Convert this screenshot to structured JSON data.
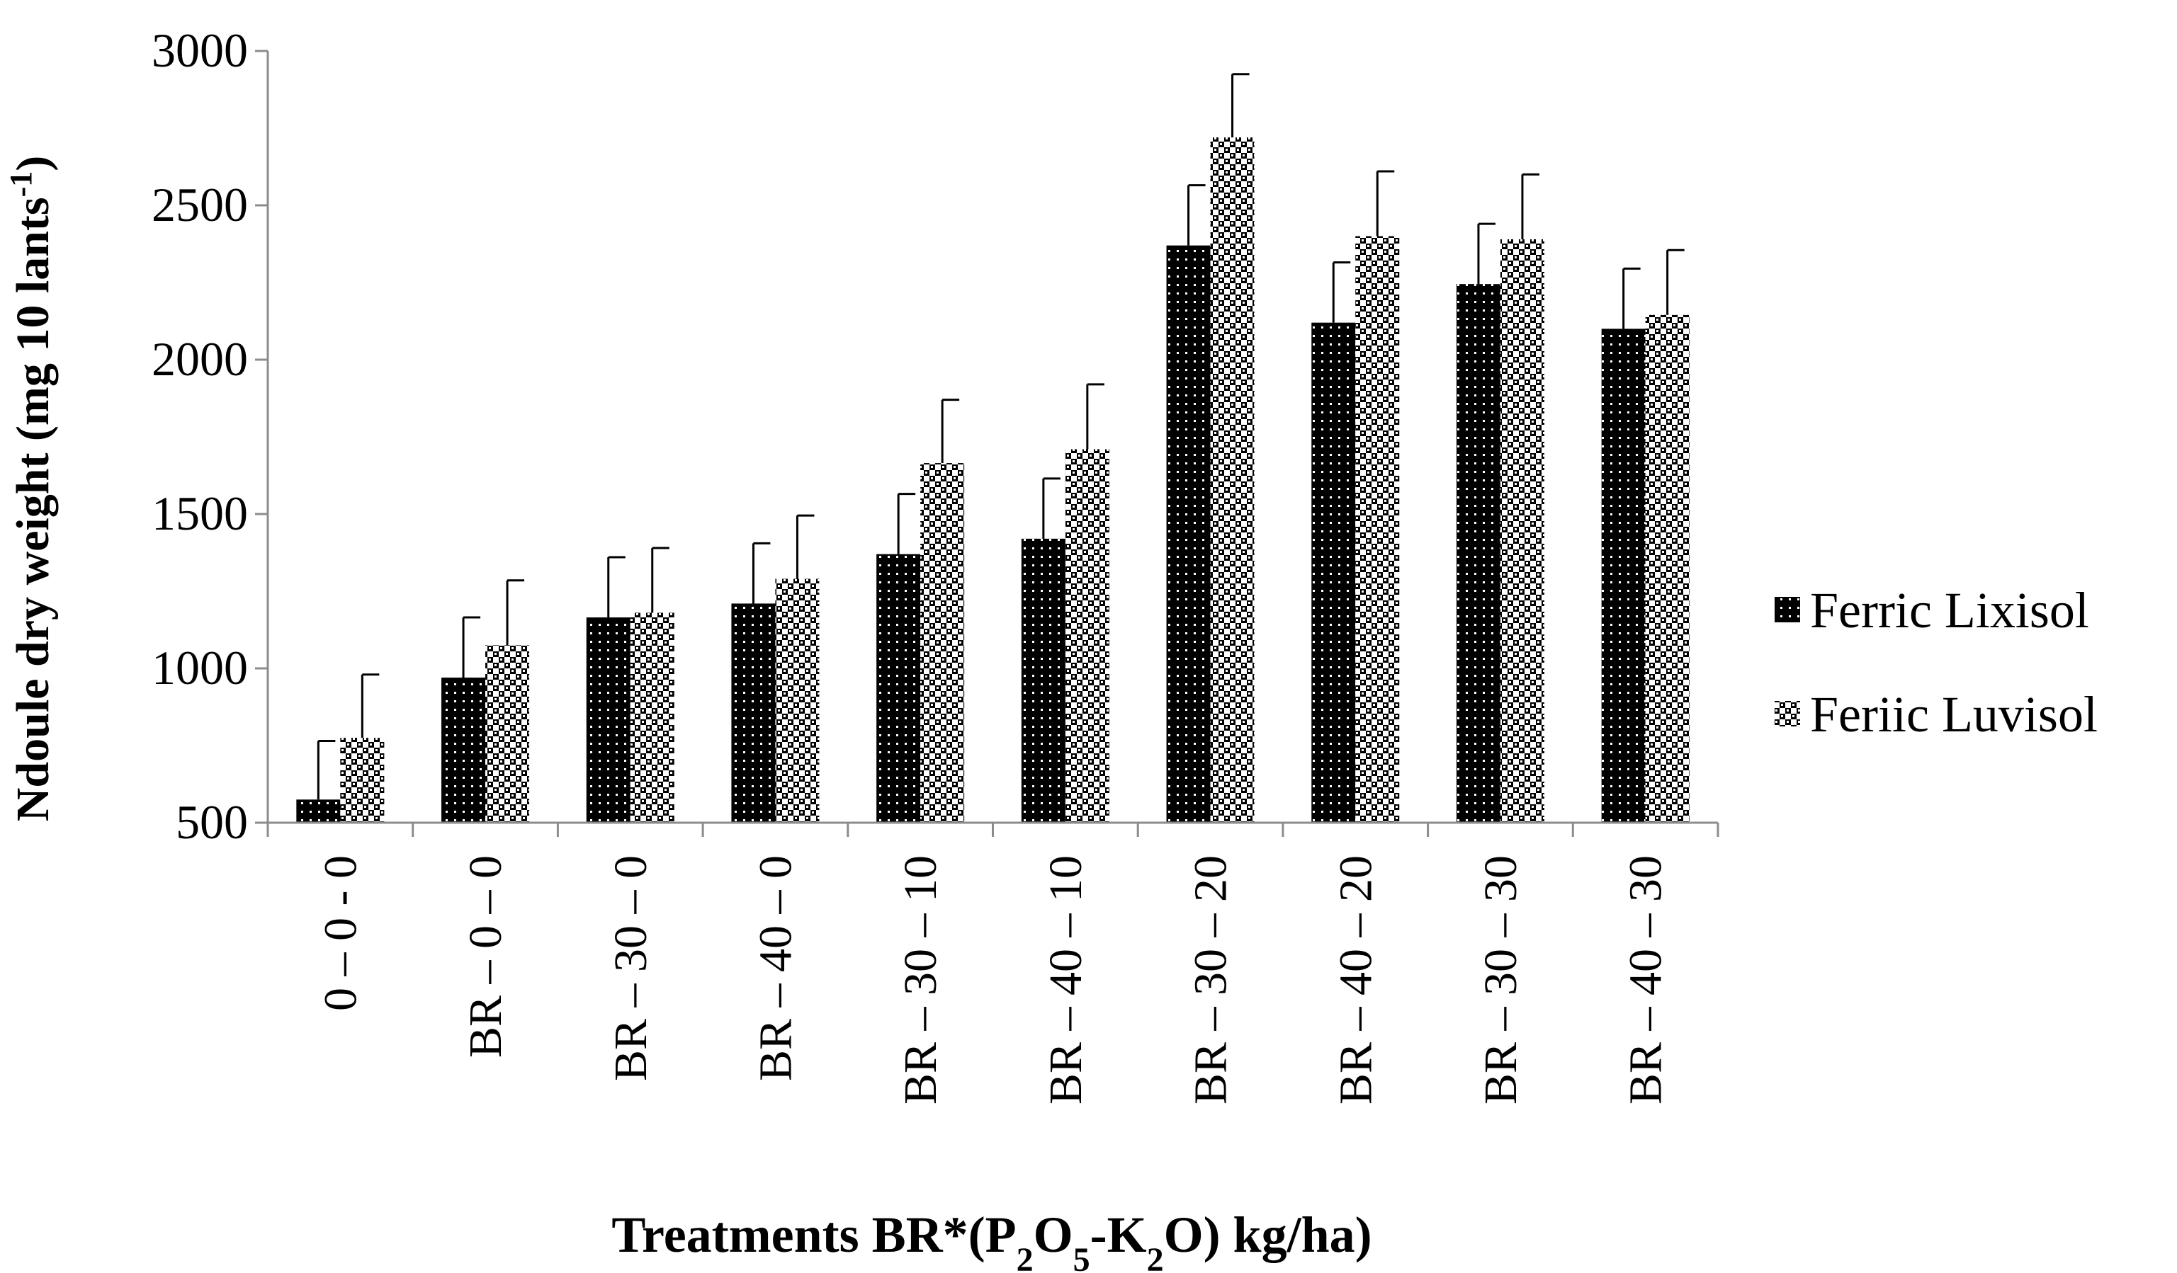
{
  "chart_data": {
    "type": "bar",
    "title": "",
    "ylabel": "Ndoule dry weight (mg 10 lants",
    "ylabel_superscript": "-1",
    "ylabel_close": ")",
    "xlabel": {
      "prefix": "Treatments BR*(P",
      "sub1": "2",
      "mid1": "O",
      "sub2": "5",
      "mid2": "-K",
      "sub3": "2",
      "suffix": "O) kg/ha)"
    },
    "ylim": [
      500,
      3000
    ],
    "yticks": [
      500,
      1000,
      1500,
      2000,
      2500,
      3000
    ],
    "categories": [
      "0 – 0 - 0",
      "BR – 0 – 0",
      "BR – 30 – 0",
      "BR – 40 – 0",
      "BR – 30 – 10",
      "BR – 40 – 10",
      "BR – 30 – 20",
      "BR – 40 – 20",
      "BR – 30 – 30",
      "BR – 40 – 30"
    ],
    "series": [
      {
        "name": "Ferric Lixisol",
        "pattern": "dark-dotted",
        "values": [
          575,
          970,
          1165,
          1210,
          1370,
          1420,
          2370,
          2120,
          2245,
          2100
        ],
        "errors": [
          190,
          195,
          195,
          195,
          195,
          195,
          195,
          195,
          195,
          195
        ]
      },
      {
        "name": "Feriic Luvisol",
        "pattern": "checkered",
        "values": [
          775,
          1075,
          1180,
          1290,
          1665,
          1710,
          2720,
          2400,
          2390,
          2145
        ],
        "errors": [
          205,
          210,
          210,
          205,
          205,
          210,
          205,
          210,
          210,
          210
        ]
      }
    ],
    "legend_position": "right",
    "grid": false
  },
  "colors": {
    "axis": "#8c8c8c",
    "bar_dark": "#000000",
    "bar_light": "#ffffff"
  }
}
